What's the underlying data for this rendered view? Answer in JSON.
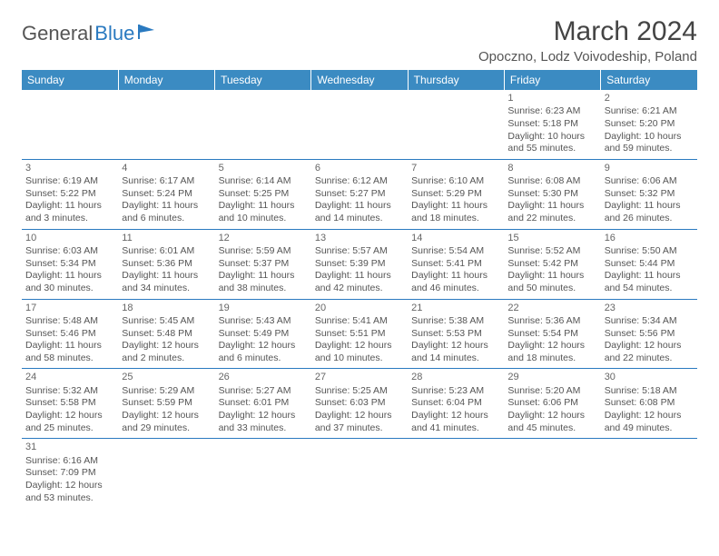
{
  "logo": {
    "part1": "General",
    "part2": "Blue"
  },
  "header": {
    "month": "March 2024",
    "location": "Opoczno, Lodz Voivodeship, Poland"
  },
  "dayHeaders": [
    "Sunday",
    "Monday",
    "Tuesday",
    "Wednesday",
    "Thursday",
    "Friday",
    "Saturday"
  ],
  "colors": {
    "headerBg": "#3b8bc2",
    "rowBorder": "#2a7ac0",
    "text": "#555"
  },
  "weeks": [
    [
      null,
      null,
      null,
      null,
      null,
      {
        "d": "1",
        "sr": "Sunrise: 6:23 AM",
        "ss": "Sunset: 5:18 PM",
        "dl1": "Daylight: 10 hours",
        "dl2": "and 55 minutes."
      },
      {
        "d": "2",
        "sr": "Sunrise: 6:21 AM",
        "ss": "Sunset: 5:20 PM",
        "dl1": "Daylight: 10 hours",
        "dl2": "and 59 minutes."
      }
    ],
    [
      {
        "d": "3",
        "sr": "Sunrise: 6:19 AM",
        "ss": "Sunset: 5:22 PM",
        "dl1": "Daylight: 11 hours",
        "dl2": "and 3 minutes."
      },
      {
        "d": "4",
        "sr": "Sunrise: 6:17 AM",
        "ss": "Sunset: 5:24 PM",
        "dl1": "Daylight: 11 hours",
        "dl2": "and 6 minutes."
      },
      {
        "d": "5",
        "sr": "Sunrise: 6:14 AM",
        "ss": "Sunset: 5:25 PM",
        "dl1": "Daylight: 11 hours",
        "dl2": "and 10 minutes."
      },
      {
        "d": "6",
        "sr": "Sunrise: 6:12 AM",
        "ss": "Sunset: 5:27 PM",
        "dl1": "Daylight: 11 hours",
        "dl2": "and 14 minutes."
      },
      {
        "d": "7",
        "sr": "Sunrise: 6:10 AM",
        "ss": "Sunset: 5:29 PM",
        "dl1": "Daylight: 11 hours",
        "dl2": "and 18 minutes."
      },
      {
        "d": "8",
        "sr": "Sunrise: 6:08 AM",
        "ss": "Sunset: 5:30 PM",
        "dl1": "Daylight: 11 hours",
        "dl2": "and 22 minutes."
      },
      {
        "d": "9",
        "sr": "Sunrise: 6:06 AM",
        "ss": "Sunset: 5:32 PM",
        "dl1": "Daylight: 11 hours",
        "dl2": "and 26 minutes."
      }
    ],
    [
      {
        "d": "10",
        "sr": "Sunrise: 6:03 AM",
        "ss": "Sunset: 5:34 PM",
        "dl1": "Daylight: 11 hours",
        "dl2": "and 30 minutes."
      },
      {
        "d": "11",
        "sr": "Sunrise: 6:01 AM",
        "ss": "Sunset: 5:36 PM",
        "dl1": "Daylight: 11 hours",
        "dl2": "and 34 minutes."
      },
      {
        "d": "12",
        "sr": "Sunrise: 5:59 AM",
        "ss": "Sunset: 5:37 PM",
        "dl1": "Daylight: 11 hours",
        "dl2": "and 38 minutes."
      },
      {
        "d": "13",
        "sr": "Sunrise: 5:57 AM",
        "ss": "Sunset: 5:39 PM",
        "dl1": "Daylight: 11 hours",
        "dl2": "and 42 minutes."
      },
      {
        "d": "14",
        "sr": "Sunrise: 5:54 AM",
        "ss": "Sunset: 5:41 PM",
        "dl1": "Daylight: 11 hours",
        "dl2": "and 46 minutes."
      },
      {
        "d": "15",
        "sr": "Sunrise: 5:52 AM",
        "ss": "Sunset: 5:42 PM",
        "dl1": "Daylight: 11 hours",
        "dl2": "and 50 minutes."
      },
      {
        "d": "16",
        "sr": "Sunrise: 5:50 AM",
        "ss": "Sunset: 5:44 PM",
        "dl1": "Daylight: 11 hours",
        "dl2": "and 54 minutes."
      }
    ],
    [
      {
        "d": "17",
        "sr": "Sunrise: 5:48 AM",
        "ss": "Sunset: 5:46 PM",
        "dl1": "Daylight: 11 hours",
        "dl2": "and 58 minutes."
      },
      {
        "d": "18",
        "sr": "Sunrise: 5:45 AM",
        "ss": "Sunset: 5:48 PM",
        "dl1": "Daylight: 12 hours",
        "dl2": "and 2 minutes."
      },
      {
        "d": "19",
        "sr": "Sunrise: 5:43 AM",
        "ss": "Sunset: 5:49 PM",
        "dl1": "Daylight: 12 hours",
        "dl2": "and 6 minutes."
      },
      {
        "d": "20",
        "sr": "Sunrise: 5:41 AM",
        "ss": "Sunset: 5:51 PM",
        "dl1": "Daylight: 12 hours",
        "dl2": "and 10 minutes."
      },
      {
        "d": "21",
        "sr": "Sunrise: 5:38 AM",
        "ss": "Sunset: 5:53 PM",
        "dl1": "Daylight: 12 hours",
        "dl2": "and 14 minutes."
      },
      {
        "d": "22",
        "sr": "Sunrise: 5:36 AM",
        "ss": "Sunset: 5:54 PM",
        "dl1": "Daylight: 12 hours",
        "dl2": "and 18 minutes."
      },
      {
        "d": "23",
        "sr": "Sunrise: 5:34 AM",
        "ss": "Sunset: 5:56 PM",
        "dl1": "Daylight: 12 hours",
        "dl2": "and 22 minutes."
      }
    ],
    [
      {
        "d": "24",
        "sr": "Sunrise: 5:32 AM",
        "ss": "Sunset: 5:58 PM",
        "dl1": "Daylight: 12 hours",
        "dl2": "and 25 minutes."
      },
      {
        "d": "25",
        "sr": "Sunrise: 5:29 AM",
        "ss": "Sunset: 5:59 PM",
        "dl1": "Daylight: 12 hours",
        "dl2": "and 29 minutes."
      },
      {
        "d": "26",
        "sr": "Sunrise: 5:27 AM",
        "ss": "Sunset: 6:01 PM",
        "dl1": "Daylight: 12 hours",
        "dl2": "and 33 minutes."
      },
      {
        "d": "27",
        "sr": "Sunrise: 5:25 AM",
        "ss": "Sunset: 6:03 PM",
        "dl1": "Daylight: 12 hours",
        "dl2": "and 37 minutes."
      },
      {
        "d": "28",
        "sr": "Sunrise: 5:23 AM",
        "ss": "Sunset: 6:04 PM",
        "dl1": "Daylight: 12 hours",
        "dl2": "and 41 minutes."
      },
      {
        "d": "29",
        "sr": "Sunrise: 5:20 AM",
        "ss": "Sunset: 6:06 PM",
        "dl1": "Daylight: 12 hours",
        "dl2": "and 45 minutes."
      },
      {
        "d": "30",
        "sr": "Sunrise: 5:18 AM",
        "ss": "Sunset: 6:08 PM",
        "dl1": "Daylight: 12 hours",
        "dl2": "and 49 minutes."
      }
    ],
    [
      {
        "d": "31",
        "sr": "Sunrise: 6:16 AM",
        "ss": "Sunset: 7:09 PM",
        "dl1": "Daylight: 12 hours",
        "dl2": "and 53 minutes."
      },
      null,
      null,
      null,
      null,
      null,
      null
    ]
  ]
}
